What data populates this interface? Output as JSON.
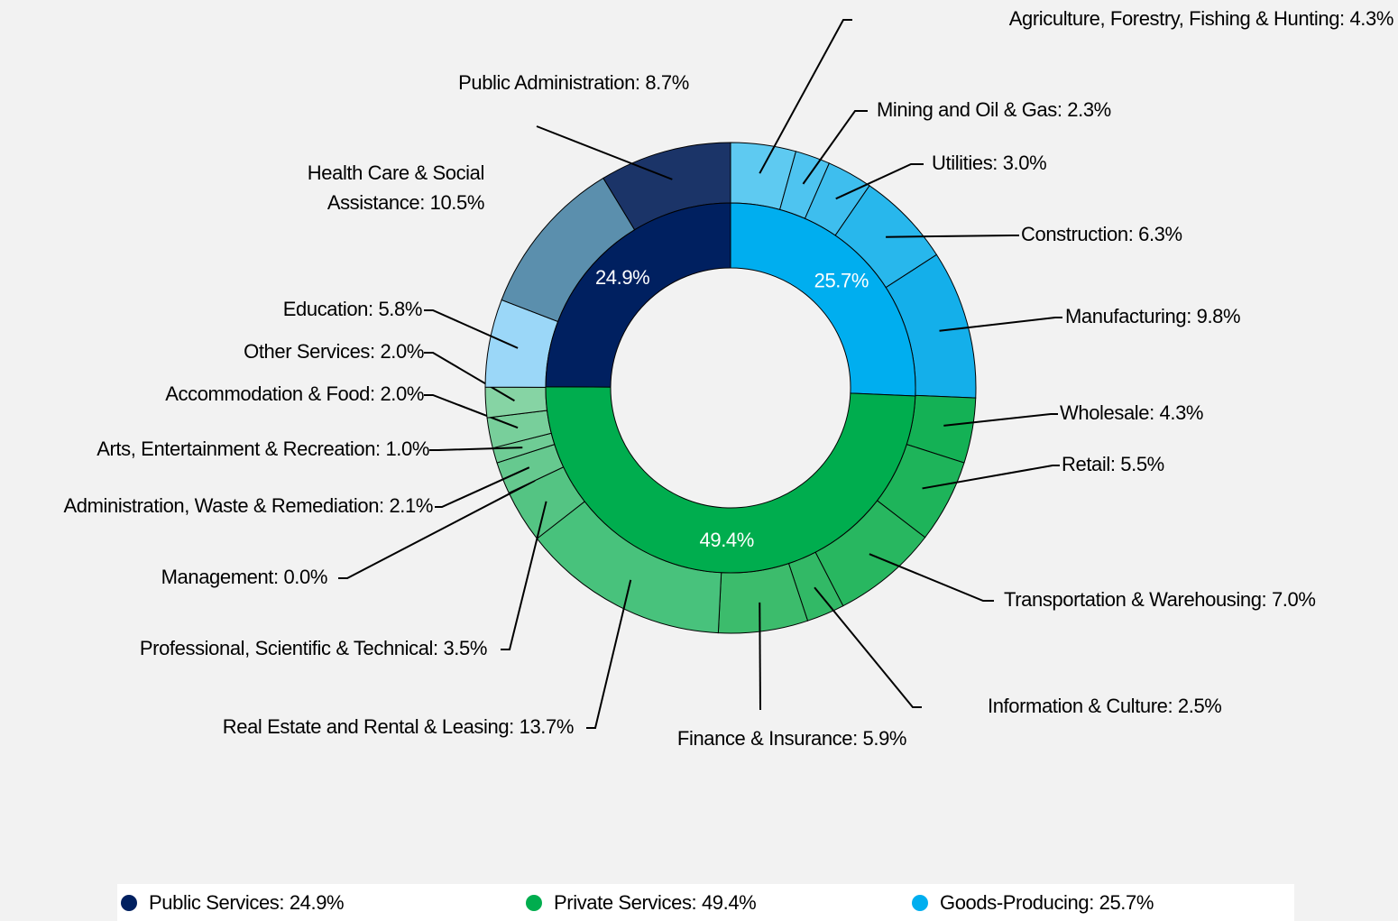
{
  "chart_data": {
    "type": "sunburst",
    "groups": [
      {
        "value": 25.7,
        "value_label": "25.7%",
        "legend_label": "Goods-Producing: 25.7%",
        "color": "#00aeef"
      },
      {
        "value": 49.4,
        "value_label": "49.4%",
        "legend_label": "Private Services: 49.4%",
        "color": "#00ad4e"
      },
      {
        "value": 24.9,
        "value_label": "24.9%",
        "legend_label": "Public Services: 24.9%",
        "color": "#002060"
      }
    ],
    "sectors": [
      {
        "value": 4.3,
        "label": "Agriculture, Forestry, Fishing & Hunting: 4.3%",
        "color": "#5ecaf1"
      },
      {
        "value": 2.3,
        "label": "Mining and Oil & Gas: 2.3%",
        "color": "#4ec4f0"
      },
      {
        "value": 3.0,
        "label": "Utilities: 3.0%",
        "color": "#3ebeee"
      },
      {
        "value": 6.3,
        "label": "Construction: 6.3%",
        "color": "#28b7ec"
      },
      {
        "value": 9.8,
        "label": "Manufacturing: 9.8%",
        "color": "#14afea"
      },
      {
        "value": 4.3,
        "label": "Wholesale: 4.3%",
        "color": "#14b155"
      },
      {
        "value": 5.5,
        "label": "Retail: 5.5%",
        "color": "#1eb45a"
      },
      {
        "value": 7.0,
        "label": "Transportation & Warehousing: 7.0%",
        "color": "#28b760"
      },
      {
        "value": 2.5,
        "label": "Information & Culture: 2.5%",
        "color": "#32b966"
      },
      {
        "value": 5.9,
        "label": "Finance & Insurance: 5.9%",
        "color": "#3cbc6c"
      },
      {
        "value": 13.7,
        "label": "Real Estate and Rental & Leasing: 13.7%",
        "color": "#48c27c"
      },
      {
        "value": 3.5,
        "label": "Professional, Scientific & Technical: 3.5%",
        "color": "#54c483"
      },
      {
        "value": 0.0,
        "label": "Management: 0.0%",
        "color": "#5ec78a"
      },
      {
        "value": 2.1,
        "label": "Administration, Waste & Remediation: 2.1%",
        "color": "#66c98f"
      },
      {
        "value": 1.0,
        "label": "Arts, Entertainment & Recreation: 1.0%",
        "color": "#6fcc95"
      },
      {
        "value": 2.0,
        "label": "Accommodation & Food: 2.0%",
        "color": "#78cf9b"
      },
      {
        "value": 2.0,
        "label": "Other Services: 2.0%",
        "color": "#86d4a4"
      },
      {
        "value": 5.8,
        "label": "Education: 5.8%",
        "color": "#9bd7f8"
      },
      {
        "value": 10.5,
        "label": "Health Care & Social\nAssistance: 10.5%",
        "color": "#5b8fad"
      },
      {
        "value": 8.7,
        "label": "Public Administration: 8.7%",
        "color": "#1b3468"
      }
    ]
  }
}
